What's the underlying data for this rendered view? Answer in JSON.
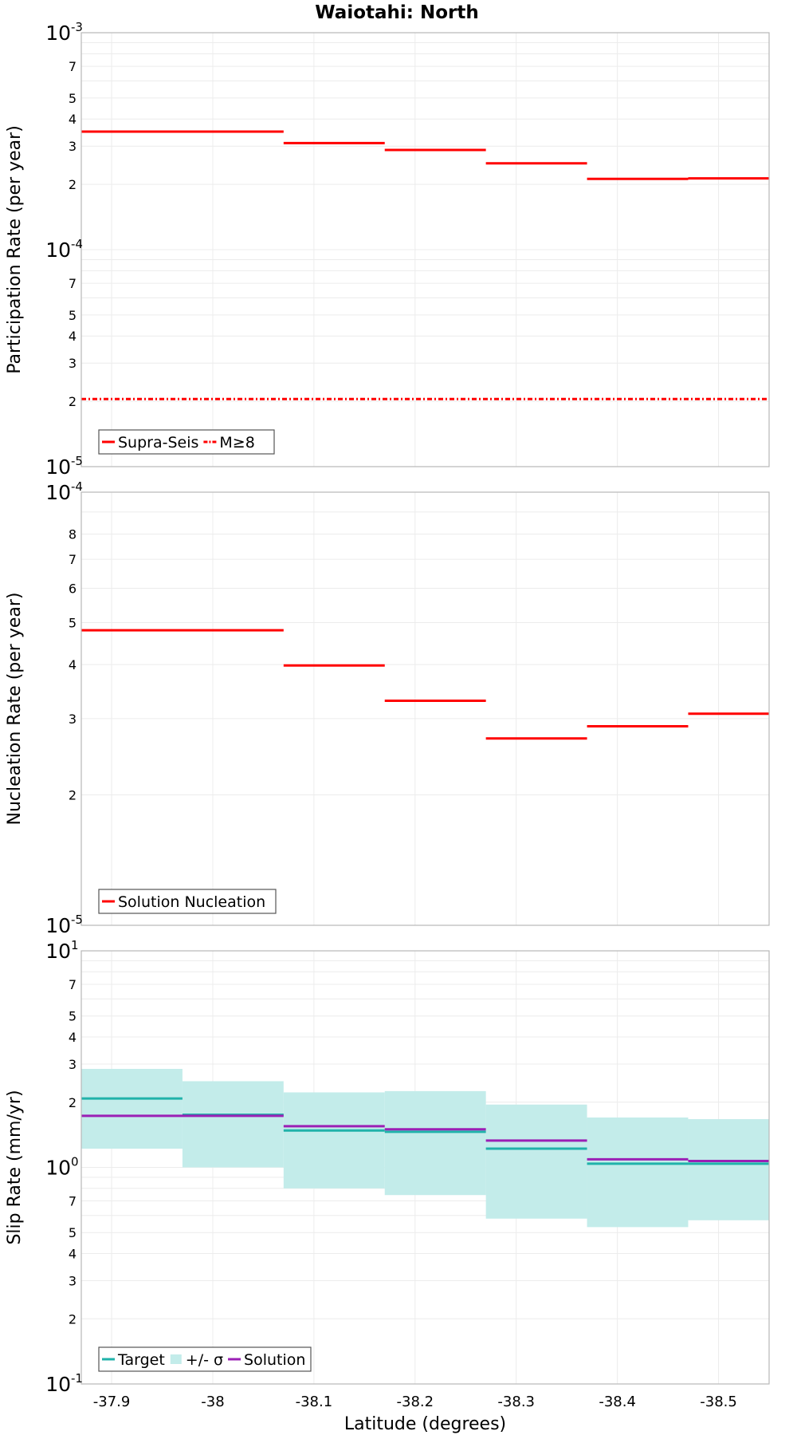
{
  "chart_data": [
    {
      "type": "line",
      "title": "Waiotahi: North",
      "ylabel": "Participation Rate (per year)",
      "xlabel": "",
      "yscale": "log",
      "ylim": [
        1e-05,
        0.001
      ],
      "xlim": [
        -37.87,
        -38.55
      ],
      "x_reversed": true,
      "grid": true,
      "legend_position": "bottom-left",
      "y_ticks": [
        {
          "value": 0.001,
          "base": "10",
          "exp": "-3"
        },
        {
          "value": 0.0007,
          "label": "7"
        },
        {
          "value": 0.0005,
          "label": "5"
        },
        {
          "value": 0.0004,
          "label": "4"
        },
        {
          "value": 0.0003,
          "label": "3"
        },
        {
          "value": 0.0002,
          "label": "2"
        },
        {
          "value": 0.0001,
          "base": "10",
          "exp": "-4"
        },
        {
          "value": 7e-05,
          "label": "7"
        },
        {
          "value": 5e-05,
          "label": "5"
        },
        {
          "value": 4e-05,
          "label": "4"
        },
        {
          "value": 3e-05,
          "label": "3"
        },
        {
          "value": 2e-05,
          "label": "2"
        },
        {
          "value": 1e-05,
          "base": "10",
          "exp": "-5"
        }
      ],
      "series": [
        {
          "name": "Supra-Seis",
          "color": "#ff0000",
          "style": "solid",
          "segments": [
            {
              "x0": -37.87,
              "x1": -38.07,
              "y": 0.00035
            },
            {
              "x0": -38.07,
              "x1": -38.17,
              "y": 0.00031
            },
            {
              "x0": -38.17,
              "x1": -38.27,
              "y": 0.000288
            },
            {
              "x0": -38.27,
              "x1": -38.37,
              "y": 0.00025
            },
            {
              "x0": -38.37,
              "x1": -38.47,
              "y": 0.000212
            },
            {
              "x0": -38.47,
              "x1": -38.55,
              "y": 0.000213
            }
          ]
        },
        {
          "name": "M≥8",
          "color": "#ff0000",
          "style": "dashdot",
          "segments": [
            {
              "x0": -37.87,
              "x1": -38.55,
              "y": 2.05e-05
            }
          ]
        }
      ]
    },
    {
      "type": "line",
      "title": "",
      "ylabel": "Nucleation Rate (per year)",
      "xlabel": "",
      "yscale": "log",
      "ylim": [
        1e-05,
        0.0001
      ],
      "xlim": [
        -37.87,
        -38.55
      ],
      "x_reversed": true,
      "grid": true,
      "legend_position": "bottom-left",
      "y_ticks": [
        {
          "value": 0.0001,
          "base": "10",
          "exp": "-4"
        },
        {
          "value": 8e-05,
          "label": "8"
        },
        {
          "value": 7e-05,
          "label": "7"
        },
        {
          "value": 6e-05,
          "label": "6"
        },
        {
          "value": 5e-05,
          "label": "5"
        },
        {
          "value": 4e-05,
          "label": "4"
        },
        {
          "value": 3e-05,
          "label": "3"
        },
        {
          "value": 2e-05,
          "label": "2"
        },
        {
          "value": 1e-05,
          "base": "10",
          "exp": "-5"
        }
      ],
      "series": [
        {
          "name": "Solution Nucleation",
          "color": "#ff0000",
          "style": "solid",
          "segments": [
            {
              "x0": -37.87,
              "x1": -38.07,
              "y": 4.8e-05
            },
            {
              "x0": -38.07,
              "x1": -38.17,
              "y": 3.98e-05
            },
            {
              "x0": -38.17,
              "x1": -38.27,
              "y": 3.3e-05
            },
            {
              "x0": -38.27,
              "x1": -38.37,
              "y": 2.7e-05
            },
            {
              "x0": -38.37,
              "x1": -38.47,
              "y": 2.88e-05
            },
            {
              "x0": -38.47,
              "x1": -38.55,
              "y": 3.08e-05
            }
          ]
        }
      ]
    },
    {
      "type": "line",
      "title": "",
      "ylabel": "Slip Rate (mm/yr)",
      "xlabel": "Latitude (degrees)",
      "yscale": "log",
      "ylim": [
        0.1,
        10
      ],
      "xlim": [
        -37.87,
        -38.55
      ],
      "x_reversed": true,
      "grid": true,
      "legend_position": "bottom-left",
      "x_ticks": [
        {
          "value": -37.9,
          "label": "-37.9"
        },
        {
          "value": -38.0,
          "label": "-38"
        },
        {
          "value": -38.1,
          "label": "-38.1"
        },
        {
          "value": -38.2,
          "label": "-38.2"
        },
        {
          "value": -38.3,
          "label": "-38.3"
        },
        {
          "value": -38.4,
          "label": "-38.4"
        },
        {
          "value": -38.5,
          "label": "-38.5"
        }
      ],
      "y_ticks": [
        {
          "value": 10,
          "base": "10",
          "exp": "1"
        },
        {
          "value": 7,
          "label": "7"
        },
        {
          "value": 5,
          "label": "5"
        },
        {
          "value": 4,
          "label": "4"
        },
        {
          "value": 3,
          "label": "3"
        },
        {
          "value": 2,
          "label": "2"
        },
        {
          "value": 1,
          "base": "10",
          "exp": "0"
        },
        {
          "value": 0.7,
          "label": "7"
        },
        {
          "value": 0.5,
          "label": "5"
        },
        {
          "value": 0.4,
          "label": "4"
        },
        {
          "value": 0.3,
          "label": "3"
        },
        {
          "value": 0.2,
          "label": "2"
        },
        {
          "value": 0.1,
          "base": "10",
          "exp": "-1"
        }
      ],
      "bands": [
        {
          "name": "+/- σ",
          "color": "#c3ecea",
          "segments": [
            {
              "x0": -37.87,
              "x1": -37.97,
              "low": 1.22,
              "high": 2.85
            },
            {
              "x0": -37.97,
              "x1": -38.07,
              "low": 1.0,
              "high": 2.5
            },
            {
              "x0": -38.07,
              "x1": -38.17,
              "low": 0.8,
              "high": 2.22
            },
            {
              "x0": -38.17,
              "x1": -38.27,
              "low": 0.745,
              "high": 2.25
            },
            {
              "x0": -38.27,
              "x1": -38.37,
              "low": 0.58,
              "high": 1.95
            },
            {
              "x0": -38.37,
              "x1": -38.47,
              "low": 0.53,
              "high": 1.7
            },
            {
              "x0": -38.47,
              "x1": -38.55,
              "low": 0.57,
              "high": 1.67
            }
          ]
        }
      ],
      "series": [
        {
          "name": "Target",
          "color": "#20b2aa",
          "style": "solid",
          "segments": [
            {
              "x0": -37.87,
              "x1": -37.97,
              "y": 2.08
            },
            {
              "x0": -37.97,
              "x1": -38.07,
              "y": 1.75
            },
            {
              "x0": -38.07,
              "x1": -38.17,
              "y": 1.48
            },
            {
              "x0": -38.17,
              "x1": -38.27,
              "y": 1.46
            },
            {
              "x0": -38.27,
              "x1": -38.37,
              "y": 1.22
            },
            {
              "x0": -38.37,
              "x1": -38.47,
              "y": 1.04
            },
            {
              "x0": -38.47,
              "x1": -38.55,
              "y": 1.04
            }
          ]
        },
        {
          "name": "Solution",
          "color": "#9b20b5",
          "style": "solid",
          "segments": [
            {
              "x0": -37.87,
              "x1": -38.07,
              "y": 1.73
            },
            {
              "x0": -38.07,
              "x1": -38.17,
              "y": 1.55
            },
            {
              "x0": -38.17,
              "x1": -38.27,
              "y": 1.5
            },
            {
              "x0": -38.27,
              "x1": -38.37,
              "y": 1.33
            },
            {
              "x0": -38.37,
              "x1": -38.47,
              "y": 1.09
            },
            {
              "x0": -38.47,
              "x1": -38.55,
              "y": 1.07
            }
          ]
        }
      ]
    }
  ]
}
